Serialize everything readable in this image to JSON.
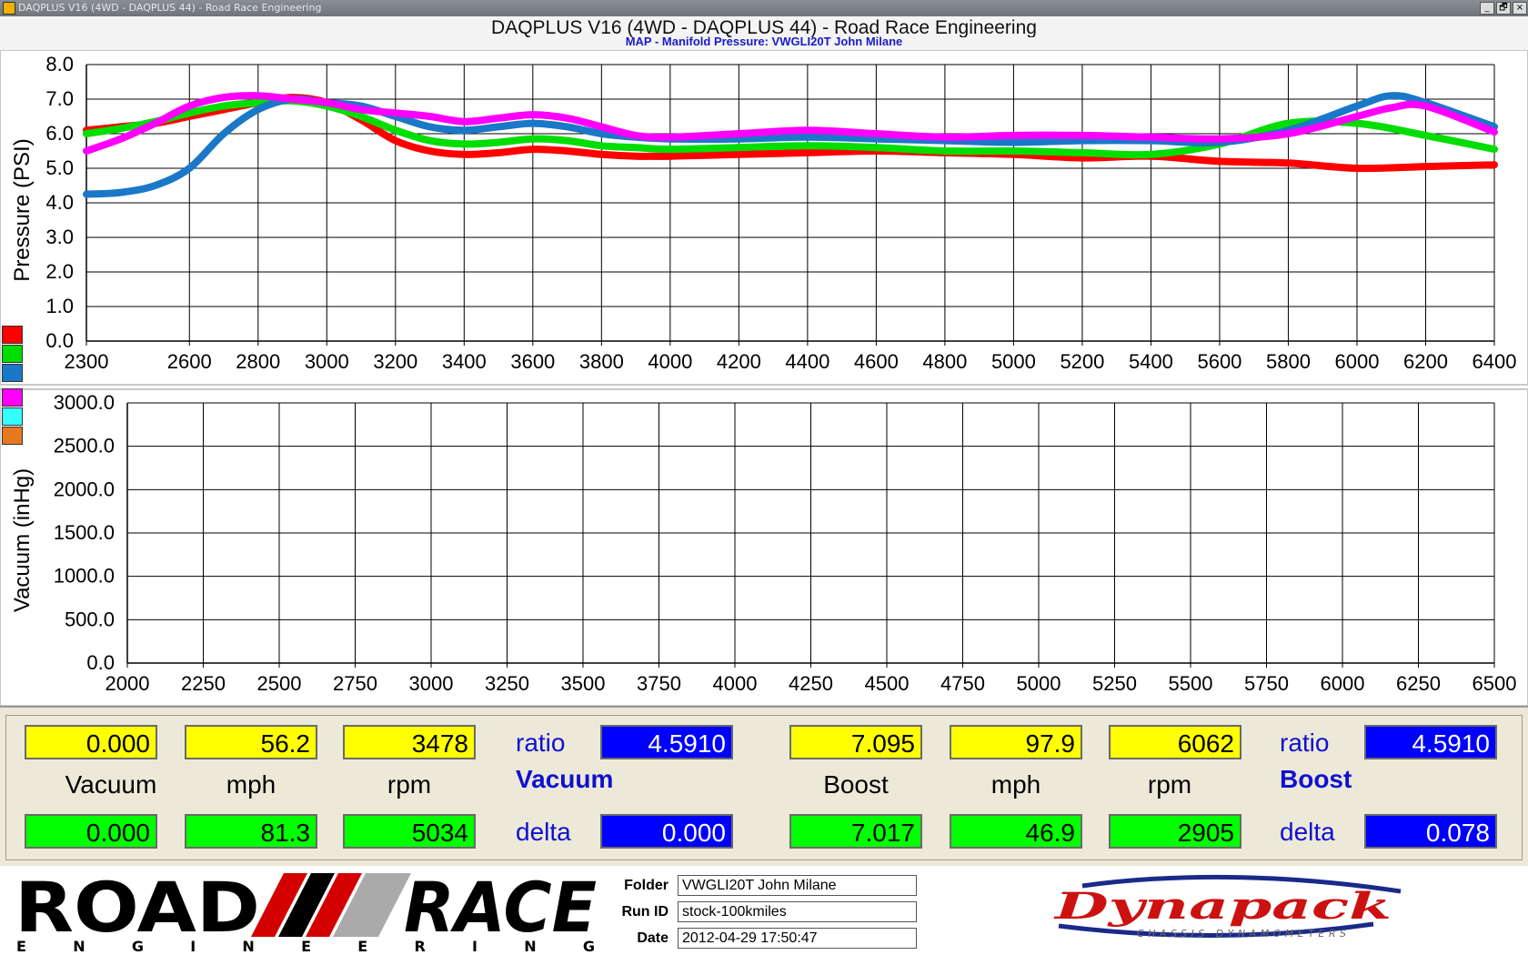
{
  "window": {
    "title": "DAQPLUS V16 (4WD - DAQPLUS 44) - Road Race Engineering",
    "buttons": [
      "_",
      "🗗",
      "×"
    ]
  },
  "header": {
    "app_title": "DAQPLUS V16 (4WD - DAQPLUS 44) - Road Race Engineering",
    "subtitle": "MAP - Manifold Pressure: VWGLI20T John Milane"
  },
  "legend_colors": [
    "#ff0000",
    "#00dd00",
    "#1a78c8",
    "#ff00ff",
    "#33ffff",
    "#e87820"
  ],
  "chart_data": [
    {
      "type": "line",
      "ylabel": "Pressure (PSI)",
      "xlabel": "",
      "xlim": [
        2300,
        6400
      ],
      "ylim": [
        0,
        8
      ],
      "x_ticks": [
        2300,
        2600,
        2800,
        3000,
        3200,
        3400,
        3600,
        3800,
        4000,
        4200,
        4400,
        4600,
        4800,
        5000,
        5200,
        5400,
        5600,
        5800,
        6000,
        6200,
        6400
      ],
      "y_ticks": [
        "0.0",
        "1.0",
        "2.0",
        "3.0",
        "4.0",
        "5.0",
        "6.0",
        "7.0",
        "8.0"
      ],
      "grid": true,
      "series": [
        {
          "color": "#ff0000",
          "x": [
            2300,
            2400,
            2500,
            2600,
            2700,
            2800,
            2900,
            3000,
            3100,
            3200,
            3300,
            3400,
            3500,
            3600,
            3700,
            3800,
            3900,
            4000,
            4200,
            4400,
            4600,
            4800,
            5000,
            5200,
            5400,
            5600,
            5800,
            6000,
            6200,
            6400
          ],
          "y": [
            6.1,
            6.2,
            6.3,
            6.5,
            6.7,
            6.9,
            7.05,
            6.9,
            6.4,
            5.8,
            5.5,
            5.4,
            5.45,
            5.55,
            5.5,
            5.4,
            5.35,
            5.35,
            5.4,
            5.45,
            5.5,
            5.45,
            5.4,
            5.3,
            5.35,
            5.2,
            5.15,
            5.0,
            5.05,
            5.1
          ]
        },
        {
          "color": "#00dd00",
          "x": [
            2300,
            2400,
            2500,
            2600,
            2700,
            2800,
            2900,
            3000,
            3100,
            3200,
            3300,
            3400,
            3500,
            3600,
            3700,
            3800,
            3900,
            4000,
            4200,
            4400,
            4600,
            4800,
            5000,
            5200,
            5400,
            5600,
            5800,
            6000,
            6200,
            6400
          ],
          "y": [
            6.0,
            6.15,
            6.35,
            6.6,
            6.8,
            6.9,
            6.95,
            6.8,
            6.5,
            6.1,
            5.8,
            5.7,
            5.75,
            5.85,
            5.8,
            5.65,
            5.6,
            5.55,
            5.6,
            5.65,
            5.6,
            5.5,
            5.5,
            5.45,
            5.4,
            5.7,
            6.3,
            6.3,
            5.95,
            5.55
          ]
        },
        {
          "color": "#1a78c8",
          "x": [
            2300,
            2400,
            2500,
            2600,
            2700,
            2800,
            2900,
            3000,
            3100,
            3200,
            3300,
            3400,
            3500,
            3600,
            3700,
            3800,
            3900,
            4000,
            4200,
            4400,
            4600,
            4800,
            5000,
            5200,
            5400,
            5600,
            5800,
            6000,
            6100,
            6200,
            6400
          ],
          "y": [
            4.25,
            4.3,
            4.5,
            5.0,
            6.0,
            6.7,
            7.0,
            6.9,
            6.8,
            6.5,
            6.2,
            6.1,
            6.2,
            6.3,
            6.2,
            6.0,
            5.9,
            5.85,
            5.85,
            5.9,
            5.85,
            5.8,
            5.75,
            5.8,
            5.8,
            5.75,
            6.1,
            6.8,
            7.1,
            6.9,
            6.2
          ]
        },
        {
          "color": "#ff00ff",
          "x": [
            2300,
            2400,
            2500,
            2600,
            2700,
            2800,
            2900,
            3000,
            3100,
            3200,
            3300,
            3400,
            3500,
            3600,
            3700,
            3800,
            3900,
            4000,
            4200,
            4400,
            4600,
            4800,
            5000,
            5200,
            5400,
            5600,
            5800,
            6000,
            6100,
            6200,
            6400
          ],
          "y": [
            5.5,
            5.85,
            6.3,
            6.8,
            7.05,
            7.1,
            7.0,
            6.9,
            6.7,
            6.6,
            6.5,
            6.35,
            6.45,
            6.55,
            6.45,
            6.2,
            5.95,
            5.9,
            6.0,
            6.1,
            6.0,
            5.9,
            5.95,
            5.95,
            5.9,
            5.85,
            6.0,
            6.5,
            6.75,
            6.8,
            6.05
          ]
        }
      ]
    },
    {
      "type": "line",
      "ylabel": "Vacuum (inHg)",
      "xlabel": "",
      "xlim": [
        2000,
        6500
      ],
      "ylim": [
        0,
        3000
      ],
      "x_ticks": [
        2000,
        2250,
        2500,
        2750,
        3000,
        3250,
        3500,
        3750,
        4000,
        4250,
        4500,
        4750,
        5000,
        5250,
        5500,
        5750,
        6000,
        6250,
        6500
      ],
      "y_ticks": [
        "0.0",
        "500.0",
        "1000.0",
        "1500.0",
        "2000.0",
        "2500.0",
        "3000.0"
      ],
      "grid": true,
      "series": []
    }
  ],
  "readouts": {
    "left": {
      "top_values": [
        "0.000",
        "56.2",
        "3478"
      ],
      "labels": [
        "Vacuum",
        "mph",
        "rpm"
      ],
      "bottom_values": [
        "0.000",
        "81.3",
        "5034"
      ],
      "ratio_label": "ratio",
      "ratio_value": "4.5910",
      "mode_label": "Vacuum",
      "delta_label": "delta",
      "delta_value": "0.000"
    },
    "right": {
      "top_values": [
        "7.095",
        "97.9",
        "6062"
      ],
      "labels": [
        "Boost",
        "mph",
        "rpm"
      ],
      "bottom_values": [
        "7.017",
        "46.9",
        "2905"
      ],
      "ratio_label": "ratio",
      "ratio_value": "4.5910",
      "mode_label": "Boost",
      "delta_label": "delta",
      "delta_value": "0.078"
    }
  },
  "footer": {
    "logo_left": {
      "word1": "ROAD",
      "word2": "RACE",
      "sub": "ENGINEERING"
    },
    "folder_label": "Folder",
    "folder_value": "VWGLI20T John Milane",
    "runid_label": "Run ID",
    "runid_value": "stock-100kmiles",
    "date_label": "Date",
    "date_value": "2012-04-29 17:50:47",
    "logo_right": {
      "word": "Dynapack",
      "sub": "CHASSIS DYNAMOMETERS"
    }
  }
}
